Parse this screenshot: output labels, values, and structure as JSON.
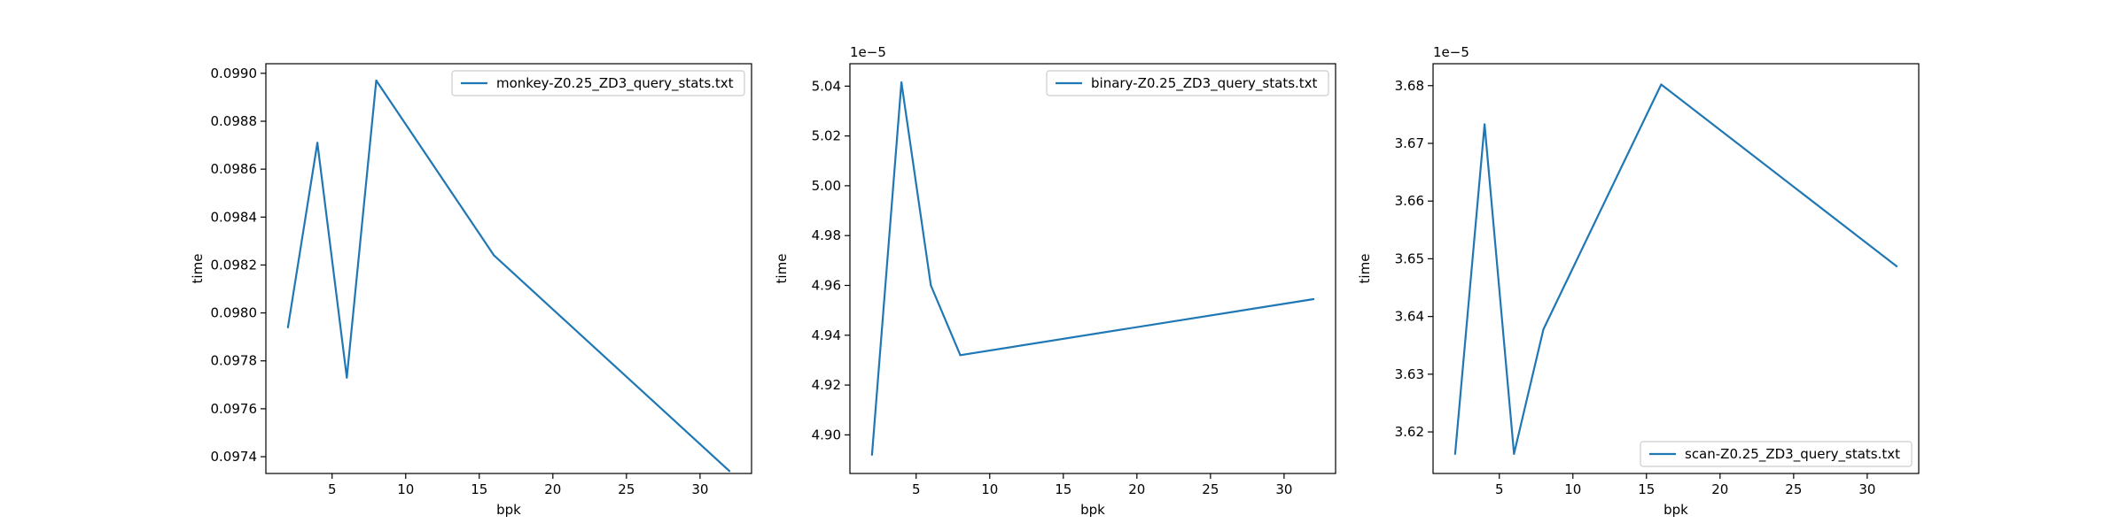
{
  "chart_data": [
    {
      "type": "line",
      "xlabel": "bpk",
      "ylabel": "time",
      "x_ticks": [
        5,
        10,
        15,
        20,
        25,
        30
      ],
      "x_tick_labels": [
        "5",
        "10",
        "15",
        "20",
        "25",
        "30"
      ],
      "y_ticks": [
        0.0974,
        0.0976,
        0.0978,
        0.098,
        0.0982,
        0.0984,
        0.0986,
        0.0988,
        0.099
      ],
      "y_tick_labels": [
        "0.0974",
        "0.0976",
        "0.0978",
        "0.0980",
        "0.0982",
        "0.0984",
        "0.0986",
        "0.0988",
        "0.0990"
      ],
      "y_offset_label": "",
      "xlim": [
        0.5,
        33.5
      ],
      "ylim": [
        0.09733,
        0.09904
      ],
      "legend_loc": "top-right",
      "grid": false,
      "series": [
        {
          "name": "monkey-Z0.25_ZD3_query_stats.txt",
          "color": "#1f77b4",
          "x": [
            2,
            4,
            6,
            8,
            16,
            32
          ],
          "y": [
            0.09794,
            0.09871,
            0.09773,
            0.09897,
            0.09824,
            0.09734
          ]
        }
      ]
    },
    {
      "type": "line",
      "xlabel": "bpk",
      "ylabel": "time",
      "x_ticks": [
        5,
        10,
        15,
        20,
        25,
        30
      ],
      "x_tick_labels": [
        "5",
        "10",
        "15",
        "20",
        "25",
        "30"
      ],
      "y_ticks": [
        4.9,
        4.92,
        4.94,
        4.96,
        4.98,
        5.0,
        5.02,
        5.04
      ],
      "y_tick_labels": [
        "4.90",
        "4.92",
        "4.94",
        "4.96",
        "4.98",
        "5.00",
        "5.02",
        "5.04"
      ],
      "y_offset_label": "1e−5",
      "xlim": [
        0.5,
        33.5
      ],
      "ylim": [
        4.8845,
        5.049
      ],
      "legend_loc": "top-right",
      "grid": false,
      "series": [
        {
          "name": "binary-Z0.25_ZD3_query_stats.txt",
          "color": "#1f77b4",
          "x": [
            2,
            4,
            6,
            8,
            32
          ],
          "y": [
            4.892,
            5.0415,
            4.96,
            4.932,
            4.9545
          ]
        }
      ]
    },
    {
      "type": "line",
      "xlabel": "bpk",
      "ylabel": "time",
      "x_ticks": [
        5,
        10,
        15,
        20,
        25,
        30
      ],
      "x_tick_labels": [
        "5",
        "10",
        "15",
        "20",
        "25",
        "30"
      ],
      "y_ticks": [
        3.62,
        3.63,
        3.64,
        3.65,
        3.66,
        3.67,
        3.68
      ],
      "y_tick_labels": [
        "3.62",
        "3.63",
        "3.64",
        "3.65",
        "3.66",
        "3.67",
        "3.68"
      ],
      "y_offset_label": "1e−5",
      "xlim": [
        0.5,
        33.5
      ],
      "ylim": [
        3.6128,
        3.6838
      ],
      "legend_loc": "bottom-right",
      "grid": false,
      "series": [
        {
          "name": "scan-Z0.25_ZD3_query_stats.txt",
          "color": "#1f77b4",
          "x": [
            2,
            4,
            6,
            8,
            16,
            32
          ],
          "y": [
            3.6162,
            3.6733,
            3.6162,
            3.6378,
            3.6802,
            3.6487
          ]
        }
      ]
    }
  ]
}
